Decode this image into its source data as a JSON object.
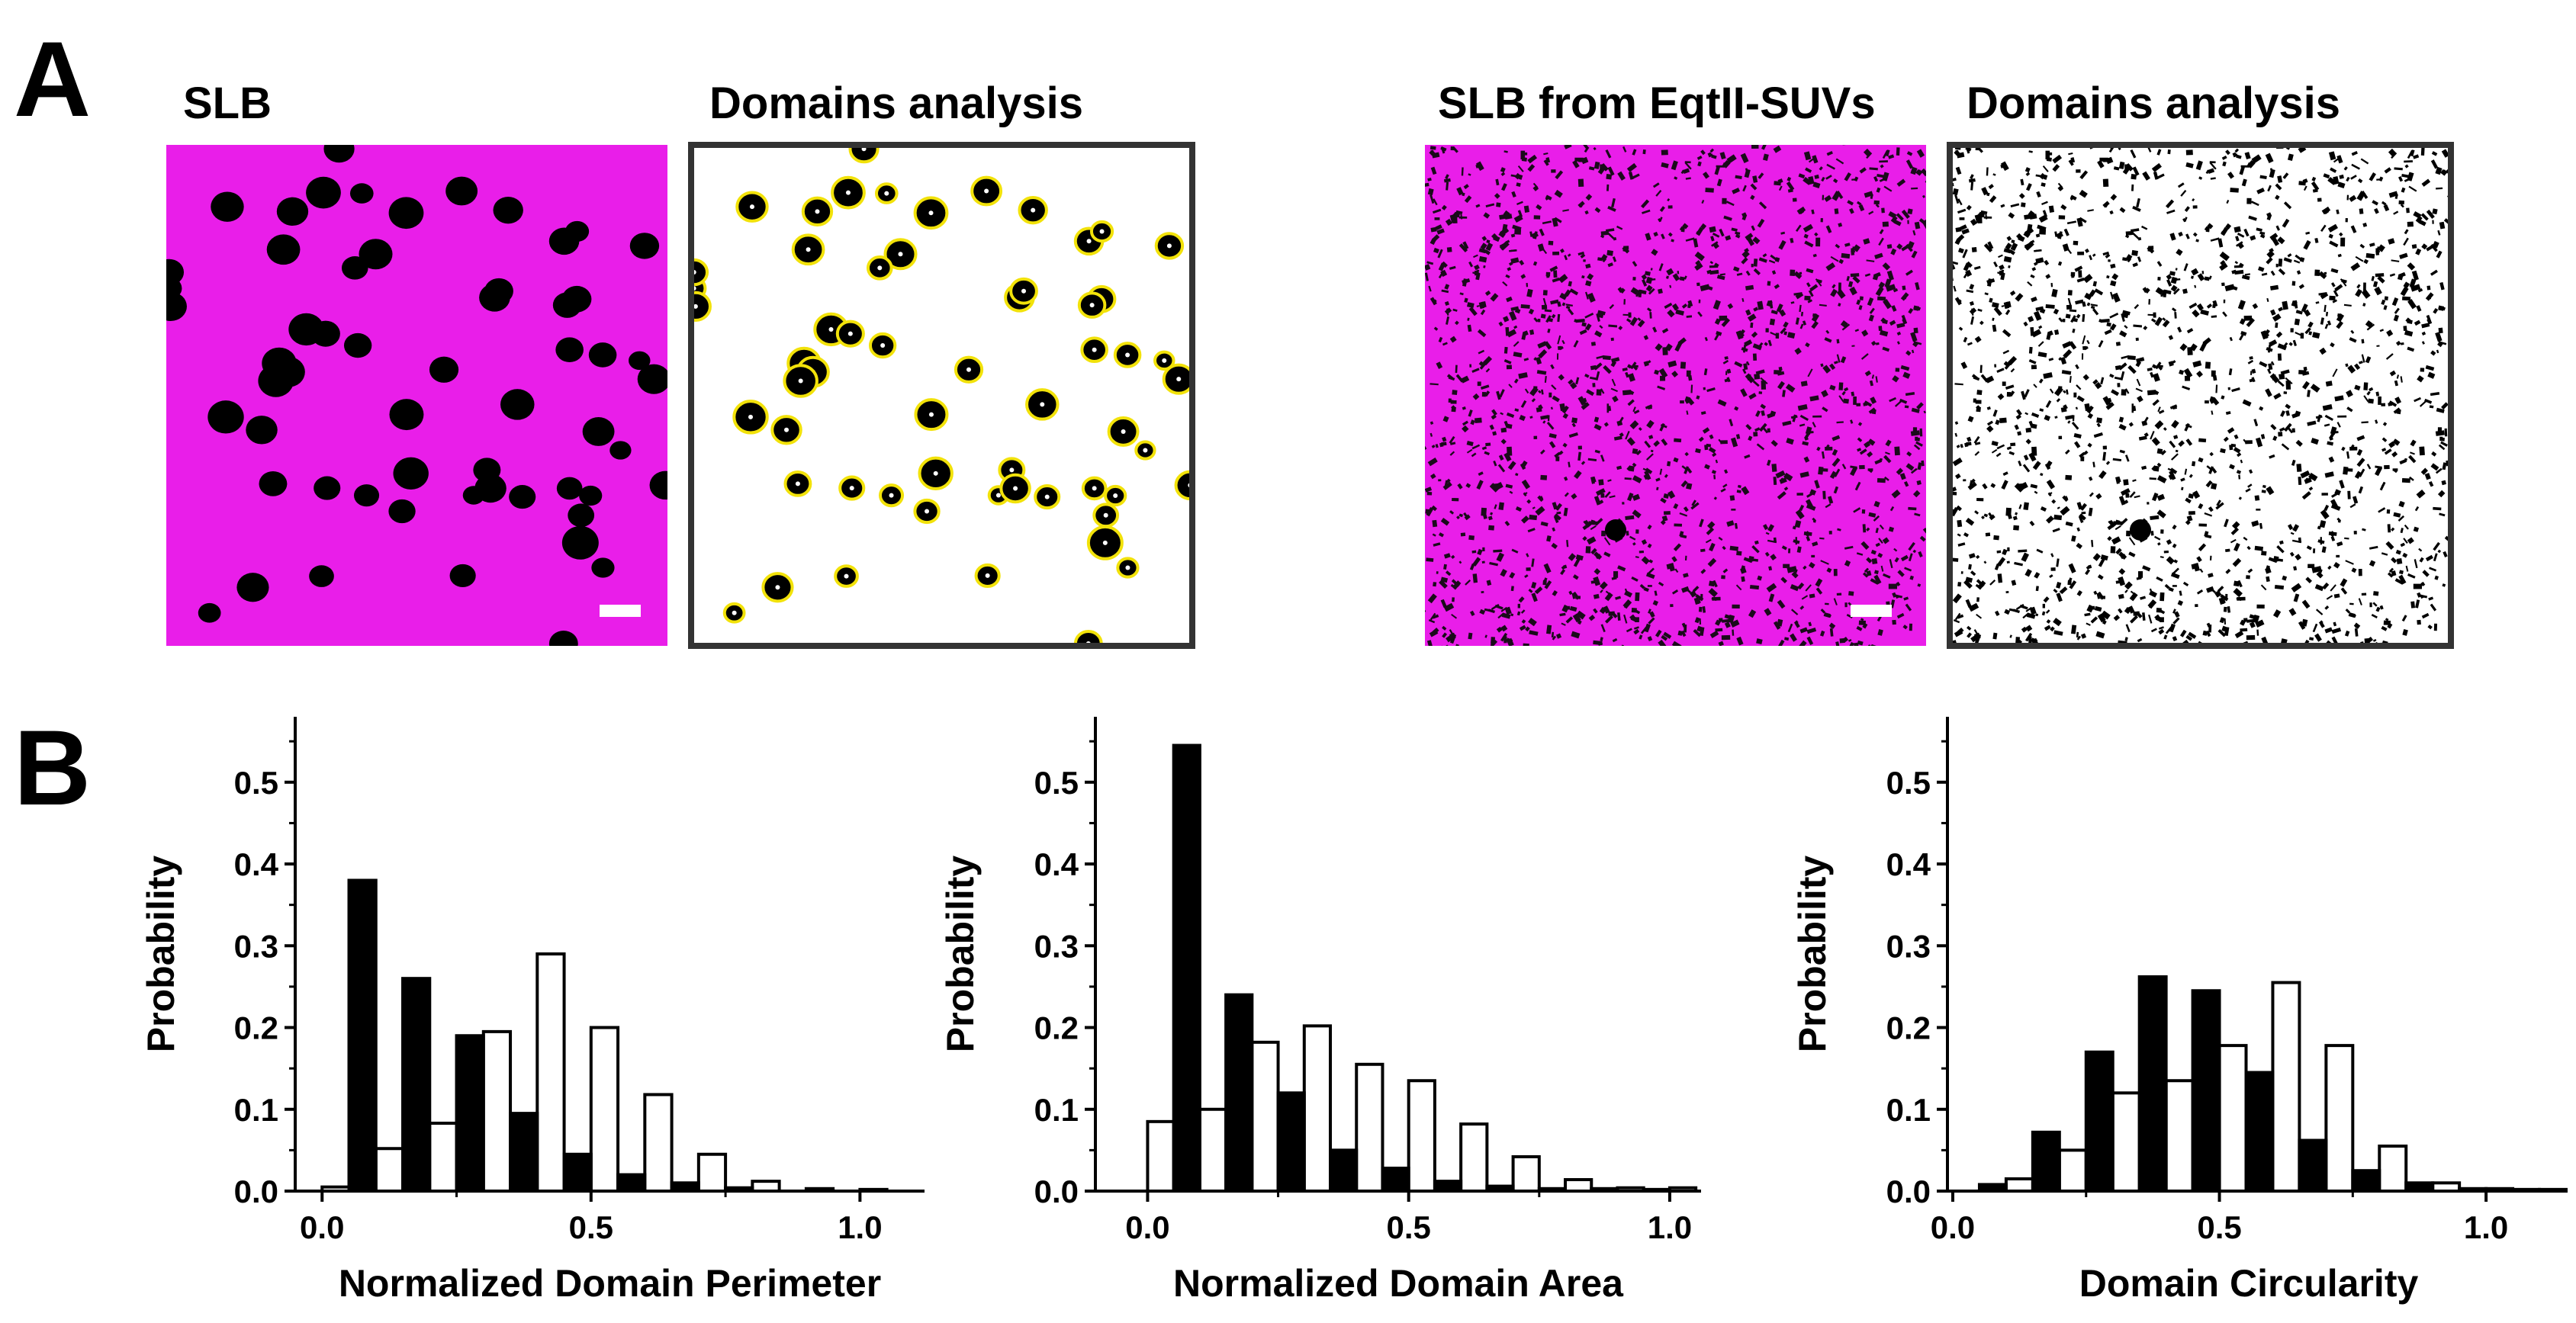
{
  "panel_a": {
    "label": "A",
    "images": [
      {
        "title": "SLB",
        "kind": "micrograph",
        "scale_bar": true
      },
      {
        "title": "Domains analysis",
        "kind": "segmentation"
      },
      {
        "title": "SLB from EqtII-SUVs",
        "kind": "micrograph",
        "scale_bar": true
      },
      {
        "title": "Domains analysis",
        "kind": "segmentation"
      }
    ],
    "colors": {
      "membrane": "#e91ee9",
      "domain": "#000000",
      "outline": "#f2e20a",
      "frame": "#333333"
    }
  },
  "panel_b": {
    "label": "B"
  },
  "chart_data": [
    {
      "type": "bar",
      "title": "",
      "xlabel": "Normalized Domain Perimeter",
      "ylabel": "Probability",
      "xlim": [
        -0.05,
        1.12
      ],
      "ylim": [
        0,
        0.58
      ],
      "x_ticks": [
        0.0,
        0.5,
        1.0
      ],
      "x_tick_labels": [
        "0.0",
        "0.5",
        "1.0"
      ],
      "y_ticks": [
        0.0,
        0.1,
        0.2,
        0.3,
        0.4,
        0.5
      ],
      "y_tick_labels": [
        "0.0",
        "0.1",
        "0.2",
        "0.3",
        "0.4",
        "0.5"
      ],
      "bin_width": 0.1,
      "series": [
        {
          "name": "SLB",
          "style": "filled",
          "x": [
            0.1,
            0.2,
            0.3,
            0.4,
            0.5,
            0.6,
            0.7,
            0.8
          ],
          "values": [
            0.38,
            0.26,
            0.19,
            0.095,
            0.045,
            0.02,
            0.01,
            0.004
          ]
        },
        {
          "name": "SLB from EqtII-SUVs",
          "style": "open",
          "x": [
            0.0,
            0.1,
            0.2,
            0.3,
            0.4,
            0.5,
            0.6,
            0.7,
            0.8,
            0.9,
            1.0
          ],
          "values": [
            0.005,
            0.052,
            0.083,
            0.195,
            0.29,
            0.2,
            0.118,
            0.045,
            0.012,
            0.003,
            0.002
          ]
        }
      ]
    },
    {
      "type": "bar",
      "title": "",
      "xlabel": "Normalized Domain Area",
      "ylabel": "Probability",
      "xlim": [
        -0.1,
        1.06
      ],
      "ylim": [
        0,
        0.58
      ],
      "x_ticks": [
        0.0,
        0.5,
        1.0
      ],
      "x_tick_labels": [
        "0.0",
        "0.5",
        "1.0"
      ],
      "y_ticks": [
        0.0,
        0.1,
        0.2,
        0.3,
        0.4,
        0.5
      ],
      "y_tick_labels": [
        "0.0",
        "0.1",
        "0.2",
        "0.3",
        "0.4",
        "0.5"
      ],
      "bin_width": 0.1,
      "series": [
        {
          "name": "SLB",
          "style": "filled",
          "x": [
            0.1,
            0.2,
            0.3,
            0.4,
            0.5,
            0.6,
            0.7,
            0.8,
            0.9,
            1.0
          ],
          "values": [
            0.545,
            0.24,
            0.12,
            0.05,
            0.028,
            0.012,
            0.006,
            0.003,
            0.003,
            0.002
          ]
        },
        {
          "name": "SLB from EqtII-SUVs",
          "style": "open",
          "x": [
            0.0,
            0.1,
            0.2,
            0.3,
            0.4,
            0.5,
            0.6,
            0.7,
            0.8,
            0.9,
            1.0
          ],
          "values": [
            0.085,
            0.1,
            0.182,
            0.202,
            0.155,
            0.135,
            0.082,
            0.042,
            0.014,
            0.004,
            0.004
          ]
        }
      ]
    },
    {
      "type": "bar",
      "title": "",
      "xlabel": "Domain Circularity",
      "ylabel": "Probability",
      "xlim": [
        -0.01,
        1.12
      ],
      "ylim": [
        0,
        0.58
      ],
      "x_ticks": [
        0.0,
        0.5,
        1.0
      ],
      "x_tick_labels": [
        "0.0",
        "0.5",
        "1.0"
      ],
      "y_ticks": [
        0.0,
        0.1,
        0.2,
        0.3,
        0.4,
        0.5
      ],
      "y_tick_labels": [
        "0.0",
        "0.1",
        "0.2",
        "0.3",
        "0.4",
        "0.5"
      ],
      "bin_width": 0.1,
      "series": [
        {
          "name": "SLB",
          "style": "filled",
          "x": [
            0.1,
            0.2,
            0.3,
            0.4,
            0.5,
            0.6,
            0.7,
            0.8,
            0.9,
            1.0,
            1.1
          ],
          "values": [
            0.008,
            0.072,
            0.17,
            0.262,
            0.245,
            0.145,
            0.062,
            0.025,
            0.01,
            0.003,
            0.002
          ]
        },
        {
          "name": "SLB from EqtII-SUVs",
          "style": "open",
          "x": [
            0.1,
            0.2,
            0.3,
            0.4,
            0.5,
            0.6,
            0.7,
            0.8,
            0.9,
            1.0,
            1.1
          ],
          "values": [
            0.015,
            0.05,
            0.12,
            0.135,
            0.178,
            0.255,
            0.178,
            0.055,
            0.01,
            0.003,
            0.002
          ]
        }
      ]
    }
  ]
}
